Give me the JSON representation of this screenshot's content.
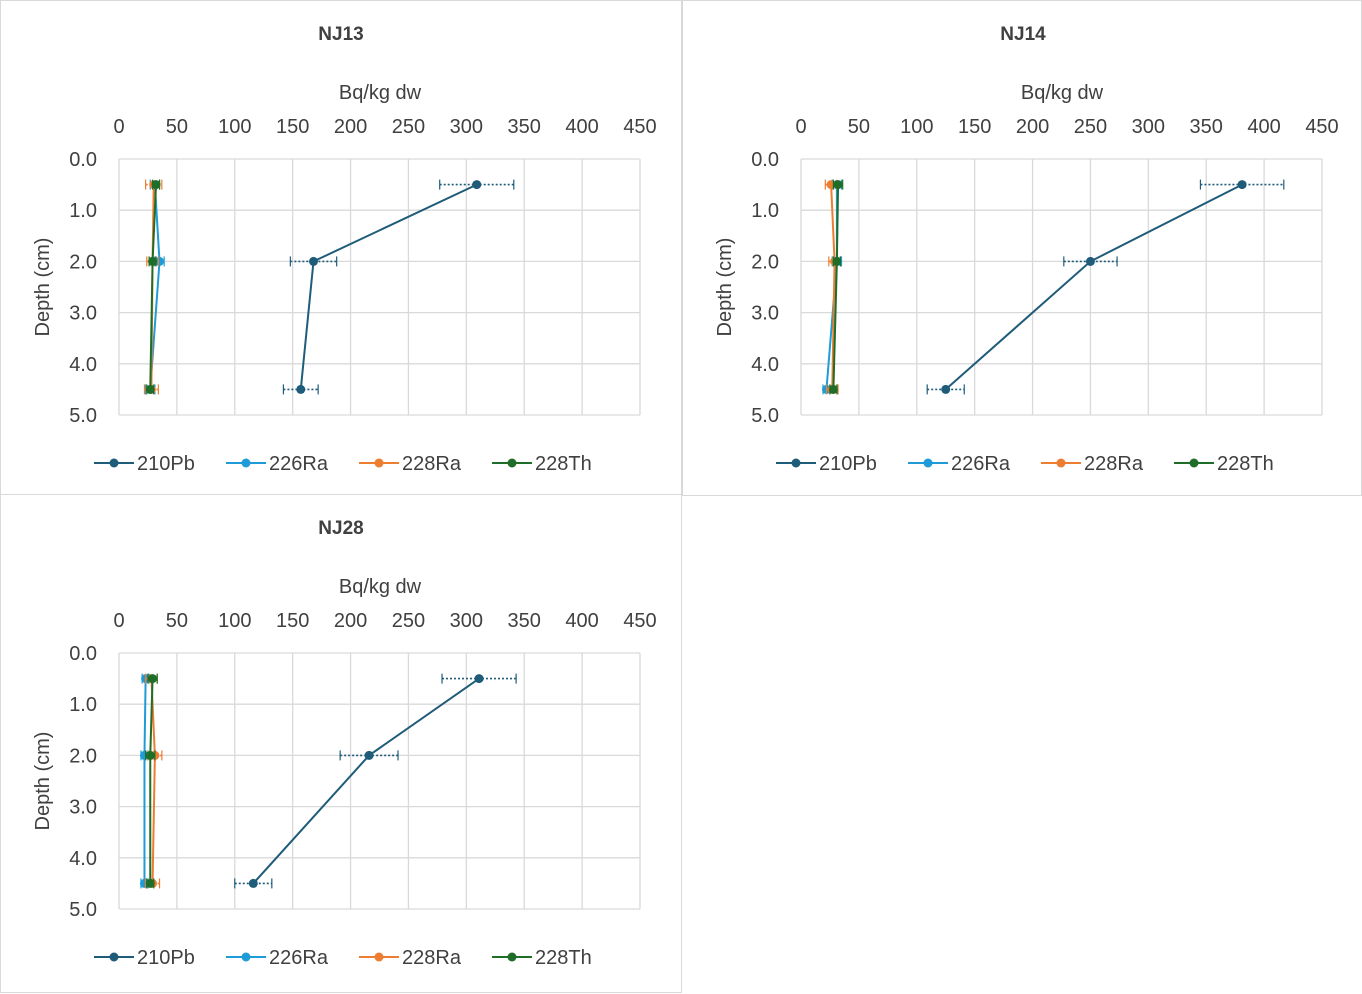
{
  "colors": {
    "210Pb": "#1f5c7a",
    "226Ra": "#1f9bd7",
    "228Ra": "#ed7d31",
    "228Th": "#1e6e2a",
    "grid": "#d9d9d9",
    "text": "#404040"
  },
  "chart_data": [
    {
      "type": "line",
      "title": "NJ13",
      "xlabel": "Bq/kg dw",
      "ylabel": "Depth (cm)",
      "xlim": [
        0,
        450
      ],
      "ylim": [
        0.0,
        5.0
      ],
      "x_ticks": [
        "0",
        "50",
        "100",
        "150",
        "200",
        "250",
        "300",
        "350",
        "400",
        "450"
      ],
      "y_ticks": [
        "0.0",
        "1.0",
        "2.0",
        "3.0",
        "4.0",
        "5.0"
      ],
      "y_inverted": true,
      "x_axis_position": "top",
      "grid": true,
      "legend": "bottom",
      "depth": [
        0.5,
        2.0,
        4.5
      ],
      "series": [
        {
          "name": "210Pb",
          "values": [
            309,
            168,
            157
          ],
          "errors": [
            32,
            20,
            15
          ]
        },
        {
          "name": "226Ra",
          "values": [
            31,
            35,
            27
          ],
          "errors": [
            4,
            4,
            4
          ]
        },
        {
          "name": "228Ra",
          "values": [
            30,
            29,
            28
          ],
          "errors": [
            7,
            5,
            6
          ]
        },
        {
          "name": "228Th",
          "values": [
            32,
            29,
            27
          ],
          "errors": [
            3,
            3,
            3
          ]
        }
      ]
    },
    {
      "type": "line",
      "title": "NJ14",
      "xlabel": "Bq/kg dw",
      "ylabel": "Depth (cm)",
      "xlim": [
        0,
        450
      ],
      "ylim": [
        0.0,
        5.0
      ],
      "x_ticks": [
        "0",
        "50",
        "100",
        "150",
        "200",
        "250",
        "300",
        "350",
        "400",
        "450"
      ],
      "y_ticks": [
        "0.0",
        "1.0",
        "2.0",
        "3.0",
        "4.0",
        "5.0"
      ],
      "y_inverted": true,
      "x_axis_position": "top",
      "grid": true,
      "legend": "bottom",
      "depth": [
        0.5,
        2.0,
        4.5
      ],
      "series": [
        {
          "name": "210Pb",
          "values": [
            381,
            250,
            125
          ],
          "errors": [
            36,
            23,
            16
          ]
        },
        {
          "name": "226Ra",
          "values": [
            31,
            31,
            22
          ],
          "errors": [
            4,
            4,
            3
          ]
        },
        {
          "name": "228Ra",
          "values": [
            26,
            29,
            27
          ],
          "errors": [
            5,
            5,
            5
          ]
        },
        {
          "name": "228Th",
          "values": [
            32,
            31,
            28
          ],
          "errors": [
            4,
            3,
            3
          ]
        }
      ]
    },
    {
      "type": "line",
      "title": "NJ28",
      "xlabel": "Bq/kg dw",
      "ylabel": "Depth (cm)",
      "xlim": [
        0,
        450
      ],
      "ylim": [
        0.0,
        5.0
      ],
      "x_ticks": [
        "0",
        "50",
        "100",
        "150",
        "200",
        "250",
        "300",
        "350",
        "400",
        "450"
      ],
      "y_ticks": [
        "0.0",
        "1.0",
        "2.0",
        "3.0",
        "4.0",
        "5.0"
      ],
      "y_inverted": true,
      "x_axis_position": "top",
      "grid": true,
      "legend": "bottom",
      "depth": [
        0.5,
        2.0,
        4.5
      ],
      "series": [
        {
          "name": "210Pb",
          "values": [
            311,
            216,
            116
          ],
          "errors": [
            32,
            25,
            16
          ]
        },
        {
          "name": "226Ra",
          "values": [
            23,
            22,
            22
          ],
          "errors": [
            3,
            3,
            3
          ]
        },
        {
          "name": "228Ra",
          "values": [
            28,
            31,
            29
          ],
          "errors": [
            5,
            6,
            6
          ]
        },
        {
          "name": "228Th",
          "values": [
            29,
            27,
            27
          ],
          "errors": [
            4,
            4,
            3
          ]
        }
      ]
    }
  ]
}
